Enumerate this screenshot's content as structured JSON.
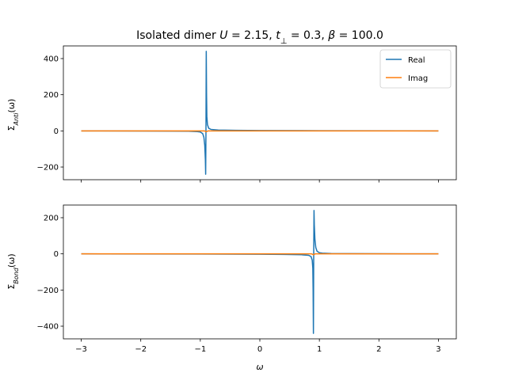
{
  "chart_data": {
    "type": "line",
    "title": "Isolated dimer U = 2.15, t⊥ = 0.3, β = 100.0",
    "title_parts": {
      "prefix": "Isolated dimer ",
      "u_symbol": "U",
      "u_value": " = 2.15, ",
      "t_symbol": "t",
      "t_sub": "⊥",
      "t_value": " = 0.3, ",
      "beta_symbol": "β",
      "beta_value": " = 100.0"
    },
    "xlabel": "ω",
    "xlim": [
      -3.3,
      3.3
    ],
    "xticks": [
      -3,
      -2,
      -1,
      0,
      1,
      2,
      3
    ],
    "xtick_labels": [
      "−3",
      "−2",
      "−1",
      "0",
      "1",
      "2",
      "3"
    ],
    "legend": {
      "placement": "top-right",
      "entries": [
        {
          "name": "Real",
          "color": "#1f77b4"
        },
        {
          "name": "Imag",
          "color": "#ff7f0e"
        }
      ]
    },
    "panels": [
      {
        "id": "anti",
        "ylabel": "Σ_Anti(ω)",
        "ylabel_parts": {
          "sigma": "Σ",
          "sub": "Anti",
          "arg": "(ω)"
        },
        "ylim": [
          -270,
          470
        ],
        "yticks": [
          -200,
          0,
          200,
          400
        ],
        "ytick_labels": [
          "−200",
          "0",
          "200",
          "400"
        ],
        "pole": -0.9,
        "series": [
          {
            "name": "Real",
            "color": "#1f77b4",
            "peak_max": 440,
            "peak_min": -240,
            "points": [
              [
                -3.0,
                0
              ],
              [
                -2.0,
                -0.5
              ],
              [
                -1.5,
                -1
              ],
              [
                -1.2,
                -2
              ],
              [
                -1.05,
                -4
              ],
              [
                -1.0,
                -6
              ],
              [
                -0.96,
                -15
              ],
              [
                -0.94,
                -35
              ],
              [
                -0.925,
                -80
              ],
              [
                -0.915,
                -160
              ],
              [
                -0.91,
                -240
              ],
              [
                -0.905,
                0
              ],
              [
                -0.9,
                440
              ],
              [
                -0.895,
                200
              ],
              [
                -0.89,
                80
              ],
              [
                -0.88,
                35
              ],
              [
                -0.86,
                15
              ],
              [
                -0.82,
                8
              ],
              [
                -0.7,
                5
              ],
              [
                -0.4,
                3
              ],
              [
                0.0,
                2
              ],
              [
                1.0,
                1
              ],
              [
                3.0,
                0
              ]
            ]
          },
          {
            "name": "Imag",
            "color": "#ff7f0e",
            "points": [
              [
                -3.0,
                0
              ],
              [
                -0.93,
                0
              ],
              [
                -0.9,
                -5
              ],
              [
                -0.87,
                0
              ],
              [
                3.0,
                0
              ]
            ]
          }
        ]
      },
      {
        "id": "bond",
        "ylabel": "Σ_Bond(ω)",
        "ylabel_parts": {
          "sigma": "Σ",
          "sub": "Bond",
          "arg": "(ω)"
        },
        "ylim": [
          -470,
          270
        ],
        "yticks": [
          -400,
          -200,
          0,
          200
        ],
        "ytick_labels": [
          "−400",
          "−200",
          "0",
          "200"
        ],
        "pole": 0.9,
        "series": [
          {
            "name": "Real",
            "color": "#1f77b4",
            "peak_max": 240,
            "peak_min": -440,
            "points": [
              [
                -3.0,
                0
              ],
              [
                -1.0,
                -1
              ],
              [
                0.0,
                -2
              ],
              [
                0.4,
                -3
              ],
              [
                0.7,
                -5
              ],
              [
                0.82,
                -8
              ],
              [
                0.86,
                -15
              ],
              [
                0.88,
                -35
              ],
              [
                0.89,
                -80
              ],
              [
                0.895,
                -200
              ],
              [
                0.9,
                -440
              ],
              [
                0.905,
                0
              ],
              [
                0.91,
                240
              ],
              [
                0.915,
                160
              ],
              [
                0.925,
                80
              ],
              [
                0.94,
                35
              ],
              [
                0.96,
                15
              ],
              [
                1.0,
                6
              ],
              [
                1.05,
                4
              ],
              [
                1.2,
                2
              ],
              [
                1.5,
                1
              ],
              [
                2.0,
                0.5
              ],
              [
                3.0,
                0
              ]
            ]
          },
          {
            "name": "Imag",
            "color": "#ff7f0e",
            "points": [
              [
                -3.0,
                0
              ],
              [
                0.87,
                0
              ],
              [
                0.9,
                -5
              ],
              [
                0.93,
                0
              ],
              [
                3.0,
                0
              ]
            ]
          }
        ]
      }
    ]
  }
}
